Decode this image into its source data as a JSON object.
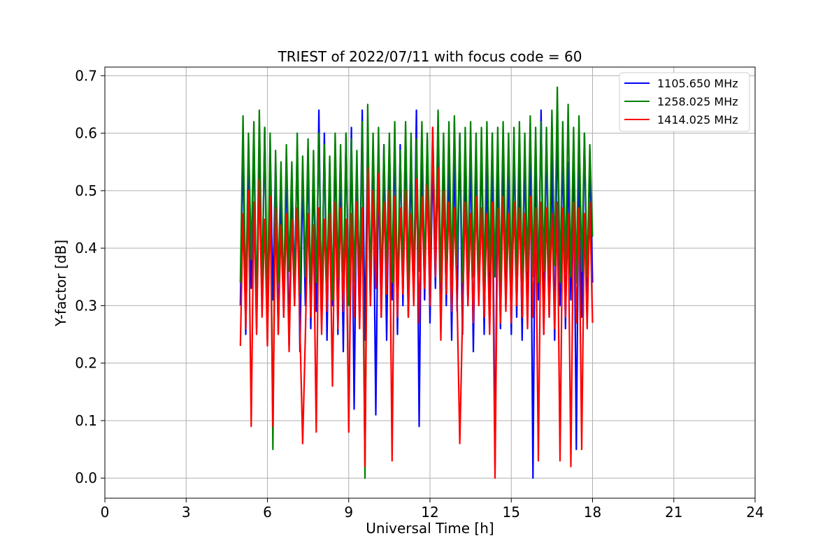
{
  "chart_data": {
    "type": "line",
    "title": "TRIEST of 2022/07/11 with focus code = 60",
    "xlabel": "Universal Time [h]",
    "ylabel": "Y-factor [dB]",
    "xlim": [
      0,
      24
    ],
    "ylim": [
      -0.035,
      0.715
    ],
    "x_ticks": [
      0,
      3,
      6,
      9,
      12,
      15,
      18,
      21,
      24
    ],
    "x_tick_labels": [
      "0",
      "3",
      "6",
      "9",
      "12",
      "15",
      "18",
      "21",
      "24"
    ],
    "y_ticks": [
      0.0,
      0.1,
      0.2,
      0.3,
      0.4,
      0.5,
      0.6,
      0.7
    ],
    "y_tick_labels": [
      "0.0",
      "0.1",
      "0.2",
      "0.3",
      "0.4",
      "0.5",
      "0.6",
      "0.7"
    ],
    "grid": true,
    "legend_position": "top-right",
    "series": [
      {
        "name": "1105.650 MHz",
        "color": "#0000ff",
        "x": [
          5.0,
          5.1,
          5.2,
          5.3,
          5.4,
          5.5,
          5.6,
          5.7,
          5.8,
          5.9,
          6.0,
          6.1,
          6.2,
          6.3,
          6.4,
          6.5,
          6.6,
          6.7,
          6.8,
          6.9,
          7.0,
          7.1,
          7.2,
          7.3,
          7.4,
          7.5,
          7.6,
          7.7,
          7.8,
          7.9,
          8.0,
          8.1,
          8.2,
          8.3,
          8.4,
          8.5,
          8.6,
          8.7,
          8.8,
          8.9,
          9.0,
          9.1,
          9.2,
          9.3,
          9.4,
          9.5,
          9.6,
          9.7,
          9.8,
          9.9,
          10.0,
          10.1,
          10.2,
          10.3,
          10.4,
          10.5,
          10.6,
          10.7,
          10.8,
          10.9,
          11.0,
          11.1,
          11.2,
          11.3,
          11.4,
          11.5,
          11.6,
          11.7,
          11.8,
          11.9,
          12.0,
          12.1,
          12.2,
          12.3,
          12.4,
          12.5,
          12.6,
          12.7,
          12.8,
          12.9,
          13.0,
          13.1,
          13.2,
          13.3,
          13.4,
          13.5,
          13.6,
          13.7,
          13.8,
          13.9,
          14.0,
          14.1,
          14.2,
          14.3,
          14.4,
          14.5,
          14.6,
          14.7,
          14.8,
          14.9,
          15.0,
          15.1,
          15.2,
          15.3,
          15.4,
          15.5,
          15.6,
          15.7,
          15.8,
          15.9,
          16.0,
          16.1,
          16.2,
          16.3,
          16.4,
          16.5,
          16.6,
          16.7,
          16.8,
          16.9,
          17.0,
          17.1,
          17.2,
          17.3,
          17.4,
          17.5,
          17.6,
          17.7,
          17.8,
          17.9,
          18.0
        ],
        "y": [
          0.3,
          0.58,
          0.25,
          0.54,
          0.33,
          0.6,
          0.26,
          0.57,
          0.32,
          0.61,
          0.24,
          0.59,
          0.31,
          0.55,
          0.25,
          0.5,
          0.28,
          0.56,
          0.23,
          0.52,
          0.34,
          0.58,
          0.22,
          0.53,
          0.3,
          0.57,
          0.26,
          0.54,
          0.29,
          0.64,
          0.27,
          0.6,
          0.24,
          0.55,
          0.3,
          0.58,
          0.25,
          0.56,
          0.22,
          0.6,
          0.3,
          0.61,
          0.12,
          0.54,
          0.33,
          0.64,
          0.24,
          0.6,
          0.3,
          0.57,
          0.11,
          0.55,
          0.28,
          0.58,
          0.24,
          0.56,
          0.31,
          0.59,
          0.25,
          0.58,
          0.3,
          0.6,
          0.28,
          0.55,
          0.32,
          0.64,
          0.09,
          0.57,
          0.31,
          0.59,
          0.27,
          0.56,
          0.33,
          0.6,
          0.26,
          0.58,
          0.3,
          0.55,
          0.24,
          0.57,
          0.29,
          0.6,
          0.25,
          0.54,
          0.3,
          0.58,
          0.22,
          0.56,
          0.31,
          0.59,
          0.25,
          0.55,
          0.28,
          0.6,
          0.02,
          0.57,
          0.26,
          0.58,
          0.3,
          0.55,
          0.25,
          0.59,
          0.28,
          0.56,
          0.24,
          0.57,
          0.3,
          0.61,
          0.0,
          0.58,
          0.31,
          0.64,
          0.25,
          0.6,
          0.28,
          0.56,
          0.24,
          0.63,
          0.3,
          0.58,
          0.26,
          0.55,
          0.31,
          0.59,
          0.05,
          0.57,
          0.28,
          0.6,
          0.3,
          0.56,
          0.34
        ]
      },
      {
        "name": "1258.025 MHz",
        "color": "#008000",
        "x": [
          5.0,
          5.1,
          5.2,
          5.3,
          5.4,
          5.5,
          5.6,
          5.7,
          5.8,
          5.9,
          6.0,
          6.1,
          6.2,
          6.3,
          6.4,
          6.5,
          6.6,
          6.7,
          6.8,
          6.9,
          7.0,
          7.1,
          7.2,
          7.3,
          7.4,
          7.5,
          7.6,
          7.7,
          7.8,
          7.9,
          8.0,
          8.1,
          8.2,
          8.3,
          8.4,
          8.5,
          8.6,
          8.7,
          8.8,
          8.9,
          9.0,
          9.1,
          9.2,
          9.3,
          9.4,
          9.5,
          9.6,
          9.7,
          9.8,
          9.9,
          10.0,
          10.1,
          10.2,
          10.3,
          10.4,
          10.5,
          10.6,
          10.7,
          10.8,
          10.9,
          11.0,
          11.1,
          11.2,
          11.3,
          11.4,
          11.5,
          11.6,
          11.7,
          11.8,
          11.9,
          12.0,
          12.1,
          12.2,
          12.3,
          12.4,
          12.5,
          12.6,
          12.7,
          12.8,
          12.9,
          13.0,
          13.1,
          13.2,
          13.3,
          13.4,
          13.5,
          13.6,
          13.7,
          13.8,
          13.9,
          14.0,
          14.1,
          14.2,
          14.3,
          14.4,
          14.5,
          14.6,
          14.7,
          14.8,
          14.9,
          15.0,
          15.1,
          15.2,
          15.3,
          15.4,
          15.5,
          15.6,
          15.7,
          15.8,
          15.9,
          16.0,
          16.1,
          16.2,
          16.3,
          16.4,
          16.5,
          16.6,
          16.7,
          16.8,
          16.9,
          17.0,
          17.1,
          17.2,
          17.3,
          17.4,
          17.5,
          17.6,
          17.7,
          17.8,
          17.9,
          18.0
        ],
        "y": [
          0.34,
          0.63,
          0.3,
          0.6,
          0.38,
          0.62,
          0.28,
          0.64,
          0.33,
          0.61,
          0.3,
          0.6,
          0.05,
          0.57,
          0.34,
          0.55,
          0.31,
          0.58,
          0.36,
          0.55,
          0.3,
          0.6,
          0.32,
          0.56,
          0.35,
          0.59,
          0.31,
          0.57,
          0.34,
          0.6,
          0.3,
          0.58,
          0.33,
          0.56,
          0.31,
          0.6,
          0.35,
          0.58,
          0.32,
          0.6,
          0.3,
          0.59,
          0.34,
          0.57,
          0.3,
          0.62,
          0.0,
          0.65,
          0.33,
          0.6,
          0.35,
          0.61,
          0.32,
          0.58,
          0.36,
          0.6,
          0.34,
          0.62,
          0.31,
          0.57,
          0.35,
          0.62,
          0.34,
          0.6,
          0.33,
          0.59,
          0.36,
          0.62,
          0.35,
          0.6,
          0.37,
          0.61,
          0.38,
          0.64,
          0.34,
          0.6,
          0.36,
          0.62,
          0.35,
          0.63,
          0.37,
          0.6,
          0.34,
          0.61,
          0.36,
          0.62,
          0.35,
          0.6,
          0.33,
          0.61,
          0.34,
          0.62,
          0.36,
          0.6,
          0.35,
          0.61,
          0.34,
          0.62,
          0.36,
          0.6,
          0.33,
          0.61,
          0.35,
          0.62,
          0.34,
          0.6,
          0.36,
          0.63,
          0.35,
          0.61,
          0.34,
          0.62,
          0.36,
          0.61,
          0.35,
          0.64,
          0.37,
          0.68,
          0.34,
          0.62,
          0.36,
          0.65,
          0.35,
          0.61,
          0.34,
          0.63,
          0.36,
          0.6,
          0.35,
          0.58,
          0.42
        ]
      },
      {
        "name": "1414.025 MHz",
        "color": "#ff0000",
        "x": [
          5.0,
          5.1,
          5.2,
          5.3,
          5.4,
          5.5,
          5.6,
          5.7,
          5.8,
          5.9,
          6.0,
          6.1,
          6.2,
          6.3,
          6.4,
          6.5,
          6.6,
          6.7,
          6.8,
          6.9,
          7.0,
          7.1,
          7.2,
          7.3,
          7.4,
          7.5,
          7.6,
          7.7,
          7.8,
          7.9,
          8.0,
          8.1,
          8.2,
          8.3,
          8.4,
          8.5,
          8.6,
          8.7,
          8.8,
          8.9,
          9.0,
          9.1,
          9.2,
          9.3,
          9.4,
          9.5,
          9.6,
          9.7,
          9.8,
          9.9,
          10.0,
          10.1,
          10.2,
          10.3,
          10.4,
          10.5,
          10.6,
          10.7,
          10.8,
          10.9,
          11.0,
          11.1,
          11.2,
          11.3,
          11.4,
          11.5,
          11.6,
          11.7,
          11.8,
          11.9,
          12.0,
          12.1,
          12.2,
          12.3,
          12.4,
          12.5,
          12.6,
          12.7,
          12.8,
          12.9,
          13.0,
          13.1,
          13.2,
          13.3,
          13.4,
          13.5,
          13.6,
          13.7,
          13.8,
          13.9,
          14.0,
          14.1,
          14.2,
          14.3,
          14.4,
          14.5,
          14.6,
          14.7,
          14.8,
          14.9,
          15.0,
          15.1,
          15.2,
          15.3,
          15.4,
          15.5,
          15.6,
          15.7,
          15.8,
          15.9,
          16.0,
          16.1,
          16.2,
          16.3,
          16.4,
          16.5,
          16.6,
          16.7,
          16.8,
          16.9,
          17.0,
          17.1,
          17.2,
          17.3,
          17.4,
          17.5,
          17.6,
          17.7,
          17.8,
          17.9,
          18.0
        ],
        "y": [
          0.23,
          0.46,
          0.26,
          0.5,
          0.09,
          0.48,
          0.25,
          0.52,
          0.28,
          0.45,
          0.23,
          0.49,
          0.09,
          0.47,
          0.25,
          0.44,
          0.28,
          0.46,
          0.22,
          0.45,
          0.3,
          0.47,
          0.26,
          0.06,
          0.25,
          0.46,
          0.28,
          0.44,
          0.08,
          0.47,
          0.25,
          0.45,
          0.29,
          0.46,
          0.16,
          0.48,
          0.26,
          0.47,
          0.29,
          0.45,
          0.08,
          0.46,
          0.28,
          0.48,
          0.26,
          0.47,
          0.02,
          0.54,
          0.3,
          0.5,
          0.33,
          0.53,
          0.28,
          0.48,
          0.32,
          0.5,
          0.03,
          0.49,
          0.28,
          0.47,
          0.32,
          0.5,
          0.28,
          0.46,
          0.3,
          0.52,
          0.27,
          0.49,
          0.33,
          0.51,
          0.3,
          0.61,
          0.35,
          0.54,
          0.24,
          0.5,
          0.32,
          0.48,
          0.29,
          0.47,
          0.31,
          0.06,
          0.28,
          0.48,
          0.3,
          0.46,
          0.27,
          0.49,
          0.3,
          0.47,
          0.28,
          0.46,
          0.25,
          0.48,
          0.0,
          0.47,
          0.27,
          0.49,
          0.29,
          0.46,
          0.27,
          0.48,
          0.3,
          0.47,
          0.28,
          0.46,
          0.26,
          0.49,
          0.28,
          0.47,
          0.03,
          0.48,
          0.25,
          0.47,
          0.28,
          0.46,
          0.26,
          0.48,
          0.03,
          0.47,
          0.28,
          0.46,
          0.02,
          0.48,
          0.27,
          0.47,
          0.05,
          0.46,
          0.26,
          0.48,
          0.27
        ]
      }
    ]
  }
}
